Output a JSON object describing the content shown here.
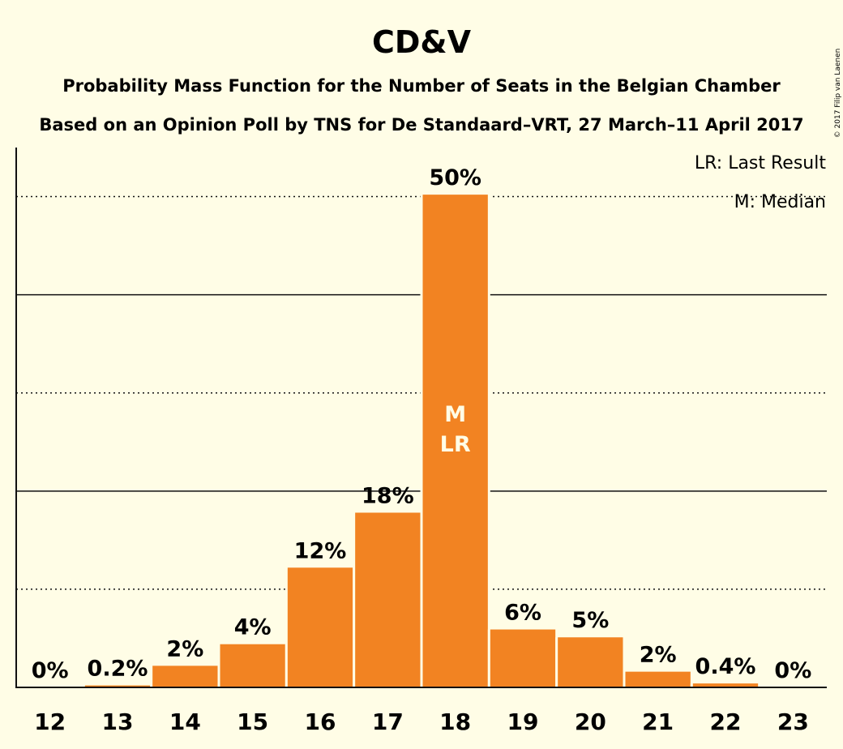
{
  "chart_data": {
    "type": "bar",
    "title": "CD&V",
    "subtitle_1": "Probability Mass Function for the Number of Seats in the Belgian Chamber",
    "subtitle_2": "Based on an Opinion Poll by TNS for De Standaard–VRT, 27 March–11 April 2017",
    "categories": [
      "12",
      "13",
      "14",
      "15",
      "16",
      "17",
      "18",
      "19",
      "20",
      "21",
      "22",
      "23"
    ],
    "values": [
      0,
      0.2,
      2.2,
      4.4,
      12.2,
      17.8,
      50.2,
      5.9,
      5.1,
      1.6,
      0.4,
      0
    ],
    "value_labels": [
      "0%",
      "0.2%",
      "2%",
      "4%",
      "12%",
      "18%",
      "50%",
      "6%",
      "5%",
      "2%",
      "0.4%",
      "0%"
    ],
    "median_category": "18",
    "last_result_category": "18",
    "median_mark": "M",
    "last_result_mark": "LR",
    "ylim": [
      0,
      55
    ],
    "gridlines_solid": [
      20,
      40
    ],
    "gridlines_dotted": [
      10,
      30,
      50
    ],
    "legend": [
      "LR: Last Result",
      "M: Median"
    ],
    "legend_position": "top-right",
    "bar_color": "#f28322",
    "background_color": "#fffde6",
    "copyright": "© 2017 Filip van Laenen"
  }
}
